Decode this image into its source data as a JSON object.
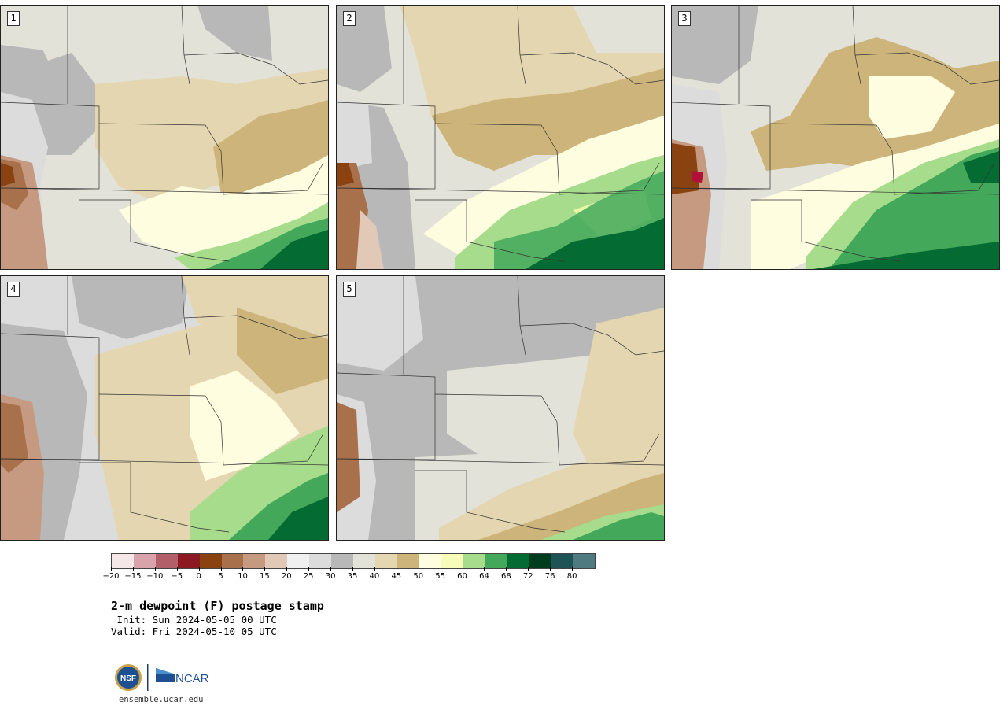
{
  "panels": [
    {
      "label": "1"
    },
    {
      "label": "2"
    },
    {
      "label": "3"
    },
    {
      "label": "4"
    },
    {
      "label": "5"
    }
  ],
  "legend": {
    "colors": [
      "#f5e6e8",
      "#d8a3ab",
      "#b35f6a",
      "#8b1a23",
      "#8a4210",
      "#a8714b",
      "#c59a80",
      "#e2c8b6",
      "#f0f0f0",
      "#dcdcdc",
      "#b8b8b8",
      "#e2e2d8",
      "#e4d6b0",
      "#cdb47a",
      "#fffde0",
      "#f7fcb8",
      "#a6dc8c",
      "#43a85a",
      "#046b32",
      "#003d1e",
      "#1f5456",
      "#4f7a80"
    ],
    "ticks": [
      "−20",
      "−15",
      "−10",
      "−5",
      "0",
      "5",
      "10",
      "15",
      "20",
      "25",
      "30",
      "35",
      "40",
      "45",
      "50",
      "55",
      "60",
      "64",
      "68",
      "72",
      "76",
      "80"
    ]
  },
  "title": "2-m dewpoint (F) postage stamp",
  "init": " Init: Sun 2024-05-05 00 UTC",
  "valid": "Valid: Fri 2024-05-10 05 UTC",
  "logos": {
    "nsf": "NSF",
    "ncar": "NCAR"
  },
  "url": "ensemble.ucar.edu"
}
